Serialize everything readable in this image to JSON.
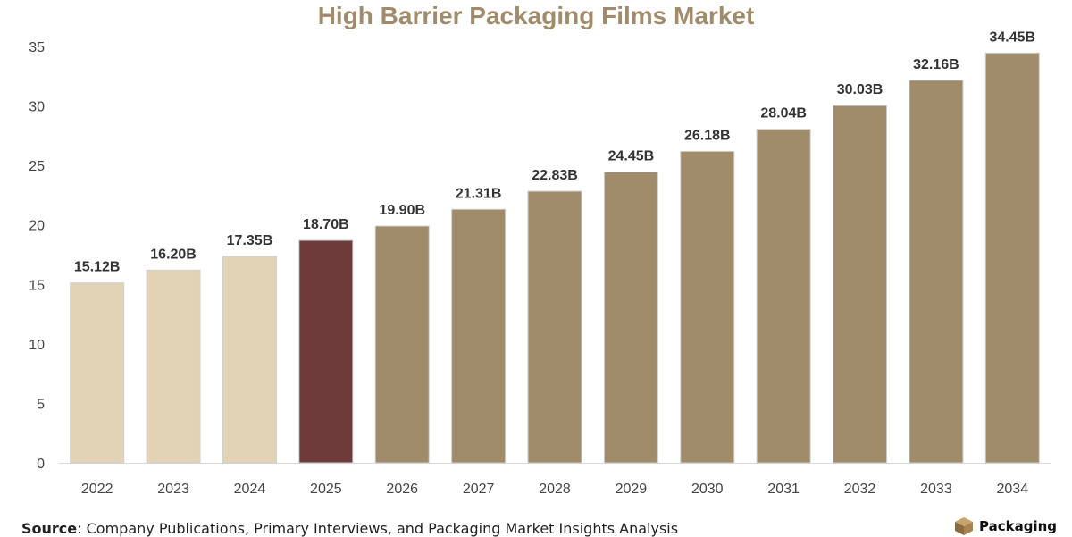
{
  "chart_data": {
    "type": "bar",
    "title": "High Barrier Packaging Films Market",
    "categories": [
      "2022",
      "2023",
      "2024",
      "2025",
      "2026",
      "2027",
      "2028",
      "2029",
      "2030",
      "2031",
      "2032",
      "2033",
      "2034"
    ],
    "values": [
      15.12,
      16.2,
      17.35,
      18.7,
      19.9,
      21.31,
      22.83,
      24.45,
      26.18,
      28.04,
      30.03,
      32.16,
      34.45
    ],
    "data_labels": [
      "15.12B",
      "16.20B",
      "17.35B",
      "18.70B",
      "19.90B",
      "21.31B",
      "22.83B",
      "24.45B",
      "26.18B",
      "28.04B",
      "30.03B",
      "32.16B",
      "34.45B"
    ],
    "bar_groups": [
      "historical",
      "historical",
      "historical",
      "current",
      "forecast",
      "forecast",
      "forecast",
      "forecast",
      "forecast",
      "forecast",
      "forecast",
      "forecast",
      "forecast"
    ],
    "colors": {
      "historical": "#e3d3b5",
      "current": "#6e3a3a",
      "forecast": "#a08b6b",
      "title": "#a08b6b"
    },
    "yticks": [
      0,
      5,
      10,
      15,
      20,
      25,
      30,
      35
    ],
    "ylim": [
      0,
      35
    ],
    "xlabel": "",
    "ylabel": "",
    "grid": false,
    "legend": "none"
  },
  "footer": {
    "source_label": "Source",
    "source_text": ": Company Publications, Primary Interviews, and Packaging Market Insights Analysis",
    "logo_text": "Packaging",
    "logo_icon": "box-icon"
  }
}
